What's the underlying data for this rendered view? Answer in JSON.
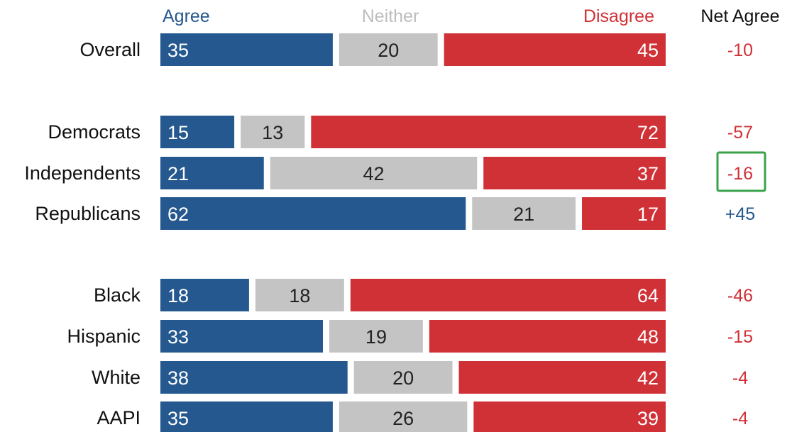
{
  "chart_data": {
    "type": "bar",
    "orientation": "horizontal",
    "stacked": true,
    "scale": "percent",
    "columns": {
      "agree": "Agree",
      "neither": "Neither",
      "disagree": "Disagree",
      "net": "Net Agree"
    },
    "categories": [
      "Overall",
      "Democrats",
      "Independents",
      "Republicans",
      "Black",
      "Hispanic",
      "White",
      "AAPI"
    ],
    "groups": [
      [
        0
      ],
      [
        1,
        2,
        3
      ],
      [
        4,
        5,
        6,
        7
      ]
    ],
    "series": [
      {
        "name": "Agree",
        "values": [
          35,
          15,
          21,
          62,
          18,
          33,
          38,
          35
        ]
      },
      {
        "name": "Neither",
        "values": [
          20,
          13,
          42,
          21,
          18,
          19,
          20,
          26
        ]
      },
      {
        "name": "Disagree",
        "values": [
          45,
          72,
          37,
          17,
          64,
          48,
          42,
          39
        ]
      }
    ],
    "net_agree": [
      "-10",
      "-57",
      "-16",
      "+45",
      "-46",
      "-15",
      "-4",
      "-4"
    ],
    "highlighted_category": "Independents",
    "colors": {
      "agree": "#24588e",
      "neither": "#c4c4c4",
      "disagree": "#d03136",
      "neither_header": "#bdbdbd",
      "net_negative": "#d03136",
      "net_positive": "#24588e",
      "highlight_box": "#3aa34a"
    }
  }
}
